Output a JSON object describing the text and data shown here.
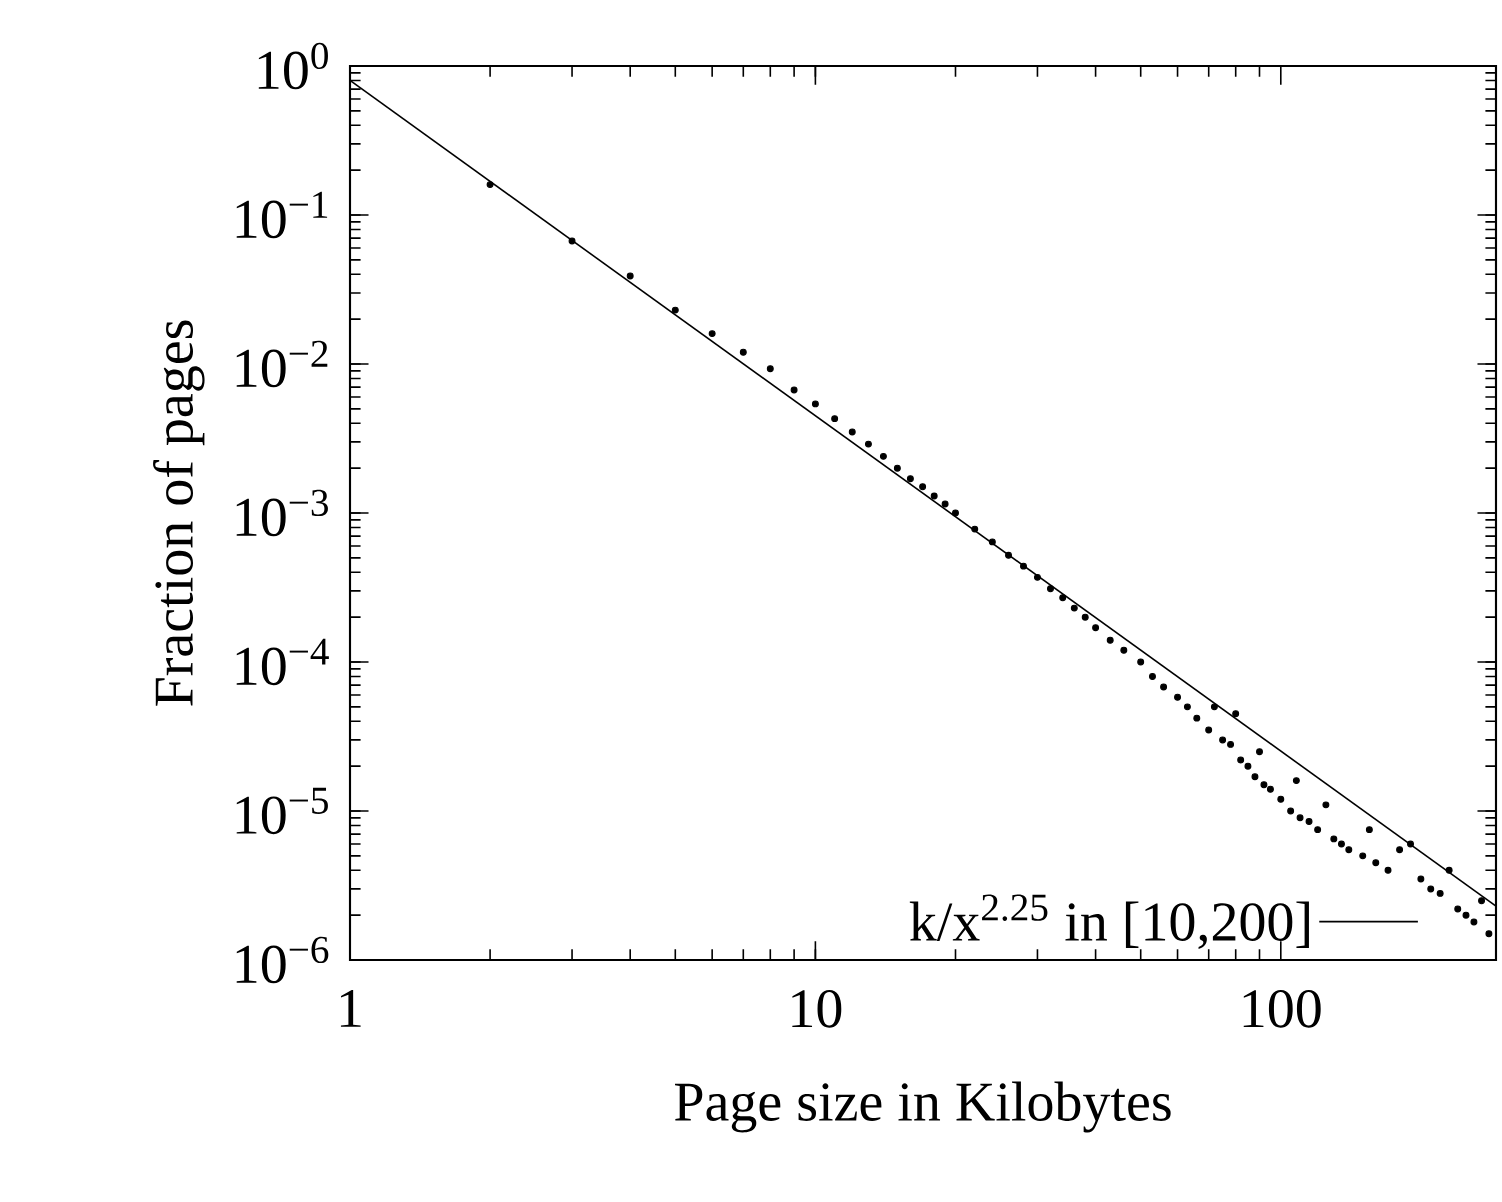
{
  "chart_data": {
    "type": "scatter",
    "xlabel": "Page size in Kilobytes",
    "ylabel": "Fraction of pages",
    "log": "xy",
    "legend": "bottom right",
    "grid": false,
    "xlim": [
      1,
      290
    ],
    "ylim": [
      1e-06,
      1
    ],
    "xticks": [
      1,
      10,
      100
    ],
    "yticks": [
      {
        "value": 1e-06,
        "label": "10$^{−6}$"
      },
      {
        "value": 1e-05,
        "label": "10$^{−5}$"
      },
      {
        "value": 0.0001,
        "label": "10$^{−4}$"
      },
      {
        "value": 0.001,
        "label": "10$^{−3}$"
      },
      {
        "value": 0.01,
        "label": "10$^{−2}$"
      },
      {
        "value": 0.1,
        "label": "10$^{−1}$"
      },
      {
        "value": 1,
        "label": "10$^{0}$"
      }
    ],
    "series": [
      {
        "marker": "circle",
        "color": "#000000",
        "x": [
          2,
          3,
          4,
          5,
          6,
          7,
          8,
          9,
          10,
          11,
          12,
          13,
          14,
          15,
          16,
          17,
          18,
          19,
          20,
          22,
          24,
          26,
          28,
          30,
          32,
          34,
          36,
          38,
          40,
          43,
          46,
          50,
          53,
          56,
          60,
          63,
          66,
          70,
          72,
          75,
          78,
          80,
          82,
          85,
          88,
          90,
          92,
          95,
          100,
          105,
          108,
          110,
          115,
          120,
          125,
          130,
          135,
          140,
          150,
          155,
          160,
          170,
          180,
          190,
          200,
          210,
          220,
          230,
          240,
          250,
          260,
          270,
          280
        ],
        "values": [
          0.16,
          0.067,
          0.039,
          0.023,
          0.016,
          0.012,
          0.0093,
          0.0067,
          0.0054,
          0.0043,
          0.0035,
          0.0029,
          0.0024,
          0.002,
          0.0017,
          0.0015,
          0.0013,
          0.00115,
          0.001,
          0.00078,
          0.00064,
          0.00052,
          0.00044,
          0.00037,
          0.00031,
          0.00027,
          0.00023,
          0.0002,
          0.00017,
          0.00014,
          0.00012,
          0.0001,
          8e-05,
          6.8e-05,
          5.8e-05,
          5e-05,
          4.2e-05,
          3.5e-05,
          5e-05,
          3e-05,
          2.8e-05,
          4.5e-05,
          2.2e-05,
          2e-05,
          1.7e-05,
          2.5e-05,
          1.5e-05,
          1.4e-05,
          1.2e-05,
          1e-05,
          1.6e-05,
          9e-06,
          8.5e-06,
          7.5e-06,
          1.1e-05,
          6.5e-06,
          6e-06,
          5.5e-06,
          5e-06,
          7.5e-06,
          4.5e-06,
          4e-06,
          5.5e-06,
          6e-06,
          3.5e-06,
          3e-06,
          2.8e-06,
          4e-06,
          2.2e-06,
          2e-06,
          1.8e-06,
          2.5e-06,
          1.5e-06
        ]
      },
      {
        "type": "line",
        "name": "k/x$^{2.25}$ in [10,200]",
        "color": "#000000",
        "marker": "none",
        "line_style": "solid",
        "x": [
          1,
          290
        ],
        "values": [
          0.8,
          2.3e-06
        ]
      }
    ]
  }
}
